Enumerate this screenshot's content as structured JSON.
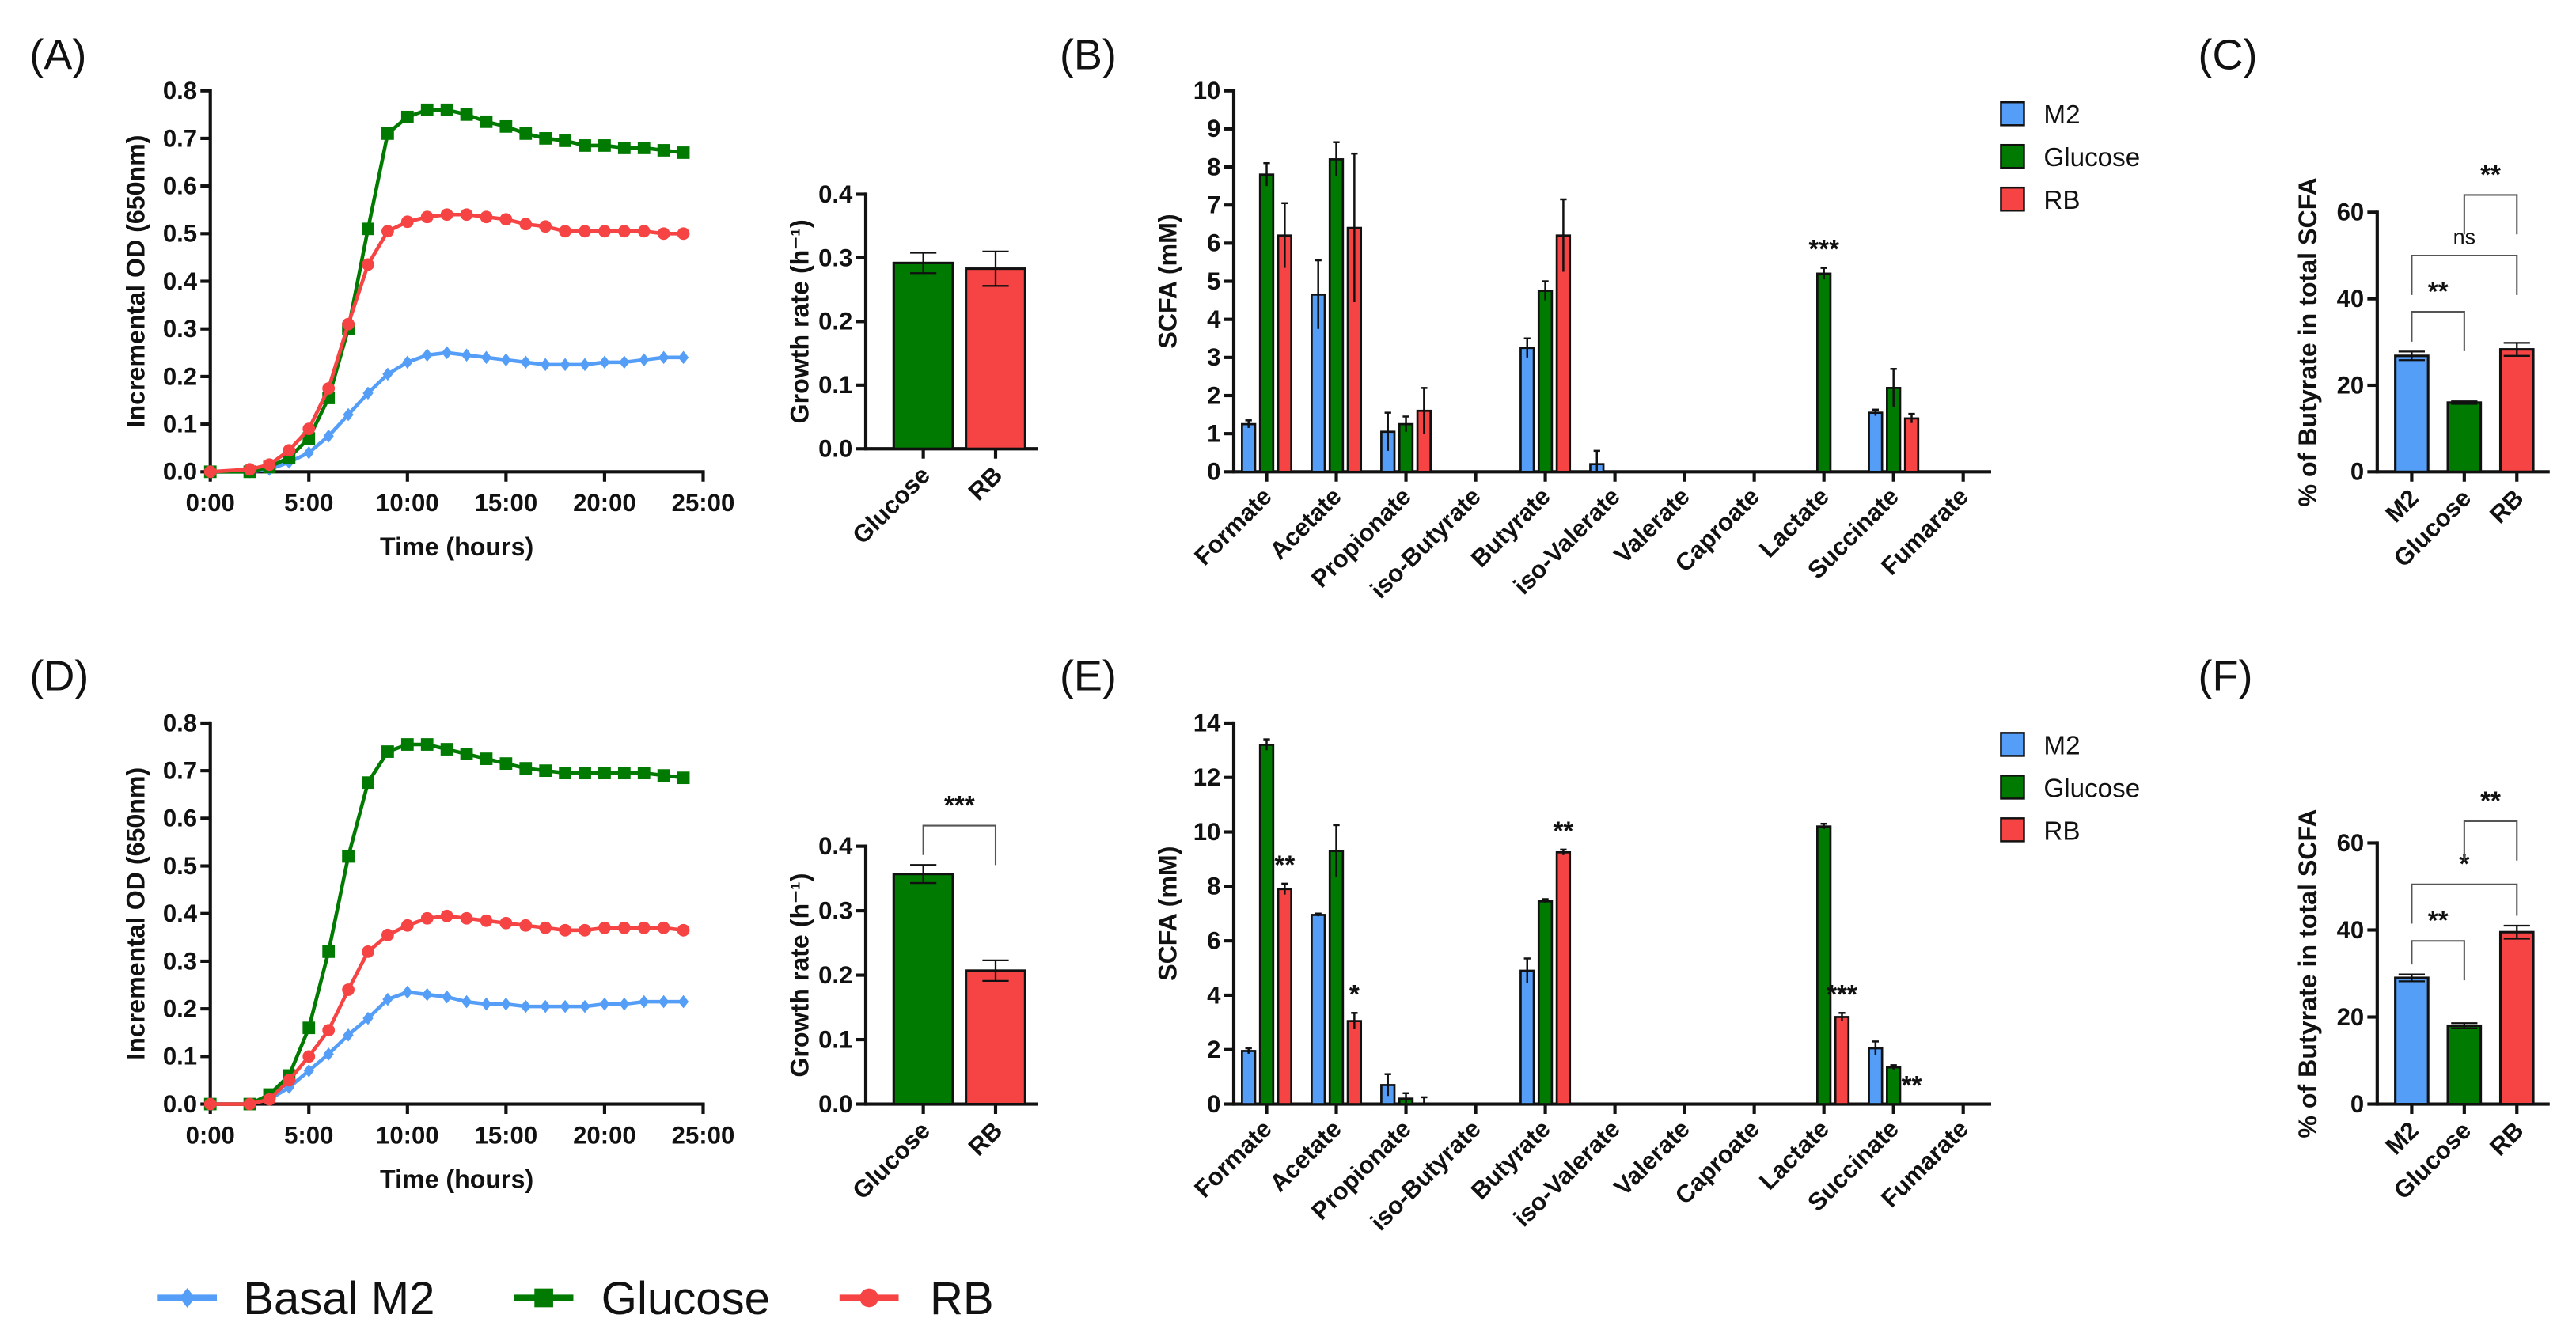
{
  "colors": {
    "m2": "#559ef7",
    "glucose": "#007a00",
    "rb": "#f64343",
    "axis": "#111111"
  },
  "legend_bottom": [
    {
      "label": "Basal M2",
      "marker": "diamond",
      "color_key": "m2"
    },
    {
      "label": "Glucose",
      "marker": "square",
      "color_key": "glucose"
    },
    {
      "label": "RB",
      "marker": "circle",
      "color_key": "rb"
    }
  ],
  "chart_data": [
    {
      "id": "A",
      "panel_label": "(A)",
      "type": "line",
      "xlabel": "Time (hours)",
      "ylabel": "Incremental OD (650nm)",
      "xlim": [
        0,
        25
      ],
      "ylim": [
        0,
        0.8
      ],
      "xticks": [
        "0:00",
        "5:00",
        "10:00",
        "15:00",
        "20:00",
        "25:00"
      ],
      "yticks": [
        "0.0",
        "0.1",
        "0.2",
        "0.3",
        "0.4",
        "0.5",
        "0.6",
        "0.7",
        "0.8"
      ],
      "x": [
        0,
        2,
        3,
        4,
        5,
        6,
        7,
        8,
        9,
        10,
        11,
        12,
        13,
        14,
        15,
        16,
        17,
        18,
        19,
        20,
        21,
        22,
        23,
        24
      ],
      "series": [
        {
          "name": "Basal M2",
          "color_key": "m2",
          "marker": "diamond",
          "values": [
            0,
            0,
            0.005,
            0.02,
            0.04,
            0.075,
            0.12,
            0.165,
            0.205,
            0.23,
            0.245,
            0.25,
            0.245,
            0.24,
            0.235,
            0.23,
            0.225,
            0.225,
            0.225,
            0.23,
            0.23,
            0.235,
            0.24,
            0.24
          ]
        },
        {
          "name": "Glucose",
          "color_key": "glucose",
          "marker": "square",
          "values": [
            0,
            0,
            0.01,
            0.03,
            0.07,
            0.155,
            0.3,
            0.51,
            0.71,
            0.745,
            0.76,
            0.76,
            0.75,
            0.735,
            0.725,
            0.71,
            0.7,
            0.695,
            0.685,
            0.685,
            0.68,
            0.68,
            0.675,
            0.67
          ]
        },
        {
          "name": "RB",
          "color_key": "rb",
          "marker": "circle",
          "values": [
            0,
            0.005,
            0.015,
            0.045,
            0.09,
            0.175,
            0.31,
            0.435,
            0.505,
            0.525,
            0.535,
            0.54,
            0.54,
            0.535,
            0.53,
            0.52,
            0.515,
            0.505,
            0.505,
            0.505,
            0.505,
            0.505,
            0.5,
            0.5
          ]
        }
      ]
    },
    {
      "id": "GA",
      "type": "bar",
      "ylabel": "Growth rate (h⁻¹)",
      "ylim": [
        0,
        0.4
      ],
      "yticks": [
        "0.0",
        "0.1",
        "0.2",
        "0.3",
        "0.4"
      ],
      "categories": [
        "Glucose",
        "RB"
      ],
      "color_keys": [
        "glucose",
        "rb"
      ],
      "values": [
        0.292,
        0.283
      ],
      "errors": [
        0.016,
        0.027
      ],
      "significance": []
    },
    {
      "id": "B",
      "panel_label": "(B)",
      "type": "bar",
      "ylabel": "SCFA (mM)",
      "ylim": [
        0,
        10
      ],
      "yticks": [
        "0",
        "1",
        "2",
        "3",
        "4",
        "5",
        "6",
        "7",
        "8",
        "9",
        "10"
      ],
      "categories": [
        "Formate",
        "Acetate",
        "Propionate",
        "iso-Butyrate",
        "Butyrate",
        "iso-Valerate",
        "Valerate",
        "Caproate",
        "Lactate",
        "Succinate",
        "Fumarate"
      ],
      "legend": [
        {
          "label": "M2",
          "color_key": "m2"
        },
        {
          "label": "Glucose",
          "color_key": "glucose"
        },
        {
          "label": "RB",
          "color_key": "rb"
        }
      ],
      "legend_position": "top-right",
      "series": [
        {
          "name": "M2",
          "color_key": "m2",
          "values": [
            1.25,
            4.65,
            1.05,
            0,
            3.25,
            0.2,
            0,
            0,
            0,
            1.55,
            0
          ],
          "errors": [
            0.1,
            0.9,
            0.5,
            0,
            0.25,
            0.35,
            0,
            0,
            0,
            0.08,
            0
          ]
        },
        {
          "name": "Glucose",
          "color_key": "glucose",
          "values": [
            7.8,
            8.2,
            1.25,
            0,
            4.75,
            0,
            0,
            0,
            5.2,
            2.2,
            0
          ],
          "errors": [
            0.3,
            0.45,
            0.2,
            0,
            0.25,
            0,
            0,
            0,
            0.15,
            0.5,
            0
          ]
        },
        {
          "name": "RB",
          "color_key": "rb",
          "values": [
            6.2,
            6.4,
            1.6,
            0,
            6.2,
            0,
            0,
            0,
            0,
            1.4,
            0
          ],
          "errors": [
            0.85,
            1.95,
            0.6,
            0,
            0.95,
            0,
            0,
            0,
            0,
            0.12,
            0
          ]
        }
      ],
      "annotations": [
        {
          "category": 8,
          "series": 1,
          "label": "***"
        }
      ]
    },
    {
      "id": "C",
      "panel_label": "(C)",
      "type": "bar",
      "ylabel": "% of Butyrate in total SCFA",
      "ylim": [
        0,
        60
      ],
      "yticks": [
        "0",
        "20",
        "40",
        "60"
      ],
      "categories": [
        "M2",
        "Glucose",
        "RB"
      ],
      "color_keys": [
        "m2",
        "glucose",
        "rb"
      ],
      "values": [
        26.8,
        16.0,
        28.3
      ],
      "errors": [
        1.0,
        0.3,
        1.5
      ],
      "significance": [
        {
          "pair": [
            0,
            1
          ],
          "label": "**"
        },
        {
          "pair": [
            0,
            2
          ],
          "label": "ns"
        },
        {
          "pair": [
            1,
            2
          ],
          "label": "**"
        }
      ]
    },
    {
      "id": "D",
      "panel_label": "(D)",
      "type": "line",
      "xlabel": "Time (hours)",
      "ylabel": "Incremental OD (650nm)",
      "xlim": [
        0,
        25
      ],
      "ylim": [
        0,
        0.8
      ],
      "xticks": [
        "0:00",
        "5:00",
        "10:00",
        "15:00",
        "20:00",
        "25:00"
      ],
      "yticks": [
        "0.0",
        "0.1",
        "0.2",
        "0.3",
        "0.4",
        "0.5",
        "0.6",
        "0.7",
        "0.8"
      ],
      "x": [
        0,
        2,
        3,
        4,
        5,
        6,
        7,
        8,
        9,
        10,
        11,
        12,
        13,
        14,
        15,
        16,
        17,
        18,
        19,
        20,
        21,
        22,
        23,
        24
      ],
      "series": [
        {
          "name": "Basal M2",
          "color_key": "m2",
          "marker": "diamond",
          "values": [
            0,
            0,
            0.01,
            0.035,
            0.07,
            0.105,
            0.145,
            0.18,
            0.22,
            0.235,
            0.23,
            0.225,
            0.215,
            0.21,
            0.21,
            0.205,
            0.205,
            0.205,
            0.205,
            0.21,
            0.21,
            0.215,
            0.215,
            0.215
          ]
        },
        {
          "name": "Glucose",
          "color_key": "glucose",
          "marker": "square",
          "values": [
            0,
            0,
            0.02,
            0.06,
            0.16,
            0.32,
            0.52,
            0.675,
            0.74,
            0.755,
            0.755,
            0.745,
            0.735,
            0.725,
            0.715,
            0.705,
            0.7,
            0.695,
            0.695,
            0.695,
            0.695,
            0.695,
            0.69,
            0.685
          ]
        },
        {
          "name": "RB",
          "color_key": "rb",
          "marker": "circle",
          "values": [
            0,
            0,
            0.01,
            0.05,
            0.1,
            0.155,
            0.24,
            0.32,
            0.355,
            0.375,
            0.39,
            0.395,
            0.39,
            0.385,
            0.38,
            0.375,
            0.37,
            0.365,
            0.365,
            0.37,
            0.37,
            0.37,
            0.37,
            0.365
          ]
        }
      ]
    },
    {
      "id": "GD",
      "type": "bar",
      "ylabel": "Growth rate (h⁻¹)",
      "ylim": [
        0,
        0.4
      ],
      "yticks": [
        "0.0",
        "0.1",
        "0.2",
        "0.3",
        "0.4"
      ],
      "categories": [
        "Glucose",
        "RB"
      ],
      "color_keys": [
        "glucose",
        "rb"
      ],
      "values": [
        0.357,
        0.207
      ],
      "errors": [
        0.014,
        0.016
      ],
      "significance": [
        {
          "pair": [
            0,
            1
          ],
          "label": "***"
        }
      ]
    },
    {
      "id": "E",
      "panel_label": "(E)",
      "type": "bar",
      "ylabel": "SCFA (mM)",
      "ylim": [
        0,
        14
      ],
      "yticks": [
        "0",
        "2",
        "4",
        "6",
        "8",
        "10",
        "12",
        "14"
      ],
      "categories": [
        "Formate",
        "Acetate",
        "Propionate",
        "iso-Butyrate",
        "Butyrate",
        "iso-Valerate",
        "Valerate",
        "Caproate",
        "Lactate",
        "Succinate",
        "Fumarate"
      ],
      "legend": [
        {
          "label": "M2",
          "color_key": "m2"
        },
        {
          "label": "Glucose",
          "color_key": "glucose"
        },
        {
          "label": "RB",
          "color_key": "rb"
        }
      ],
      "legend_position": "top-right",
      "series": [
        {
          "name": "M2",
          "color_key": "m2",
          "values": [
            1.95,
            6.95,
            0.7,
            0.02,
            4.9,
            0.02,
            0.02,
            0,
            0,
            2.05,
            0
          ],
          "errors": [
            0.1,
            0.05,
            0.4,
            0,
            0.45,
            0,
            0,
            0,
            0,
            0.25,
            0
          ]
        },
        {
          "name": "Glucose",
          "color_key": "glucose",
          "values": [
            13.2,
            9.3,
            0.2,
            0,
            7.45,
            0,
            0,
            0,
            10.2,
            1.35,
            0
          ],
          "errors": [
            0.2,
            0.95,
            0.2,
            0,
            0.08,
            0,
            0,
            0,
            0.1,
            0.08,
            0
          ]
        },
        {
          "name": "RB",
          "color_key": "rb",
          "values": [
            7.9,
            3.05,
            0,
            0,
            9.25,
            0,
            0,
            0,
            3.2,
            0,
            0
          ],
          "errors": [
            0.2,
            0.3,
            0.25,
            0,
            0.1,
            0,
            0,
            0,
            0.15,
            0,
            0
          ]
        }
      ],
      "annotations": [
        {
          "category": 0,
          "series": 2,
          "label": "**"
        },
        {
          "category": 1,
          "series": 2,
          "label": "*"
        },
        {
          "category": 4,
          "series": 2,
          "label": "**"
        },
        {
          "category": 8,
          "series": 2,
          "label": "***"
        },
        {
          "category": 9,
          "series": 2,
          "label": "**"
        }
      ]
    },
    {
      "id": "F",
      "panel_label": "(F)",
      "type": "bar",
      "ylabel": "% of Butyrate in total SCFA",
      "ylim": [
        0,
        60
      ],
      "yticks": [
        "0",
        "20",
        "40",
        "60"
      ],
      "categories": [
        "M2",
        "Glucose",
        "RB"
      ],
      "color_keys": [
        "m2",
        "glucose",
        "rb"
      ],
      "values": [
        29.0,
        18.0,
        39.5
      ],
      "errors": [
        0.8,
        0.6,
        1.5
      ],
      "significance": [
        {
          "pair": [
            0,
            1
          ],
          "label": "**"
        },
        {
          "pair": [
            0,
            2
          ],
          "label": "*"
        },
        {
          "pair": [
            1,
            2
          ],
          "label": "**"
        }
      ]
    }
  ]
}
